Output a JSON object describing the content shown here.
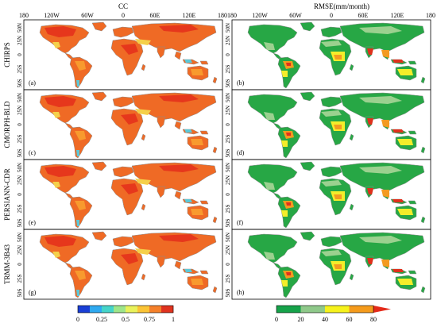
{
  "columns": [
    {
      "title": "CC",
      "top_lon": [
        "180",
        "120W",
        "60W",
        "0",
        "60E",
        "120E",
        "180"
      ]
    },
    {
      "title": "RMSE(mm/month)",
      "top_lon": [
        "180",
        "120W",
        "60W",
        "0",
        "60E",
        "120E",
        "180"
      ]
    }
  ],
  "lat_labels": [
    "50N",
    "25N",
    "0",
    "25S",
    "50S"
  ],
  "rows": [
    {
      "product": "CHIRPS",
      "panels": [
        "(a)",
        "(b)"
      ]
    },
    {
      "product": "CMORPH-BLD",
      "panels": [
        "(c)",
        "(d)"
      ]
    },
    {
      "product": "PERSIANN-CDR",
      "panels": [
        "(e)",
        "(f)"
      ]
    },
    {
      "product": "TRMM-3B43",
      "panels": [
        "(g)",
        "(h)"
      ]
    }
  ],
  "colorbars": {
    "cc": {
      "ticks": [
        "0",
        "0.25",
        "0.5",
        "0.75",
        "1"
      ],
      "colors": [
        "#1a3fd6",
        "#2fa9f0",
        "#45d4c9",
        "#9ee58a",
        "#e9f25b",
        "#fbc436",
        "#f5802a",
        "#e0331f"
      ]
    },
    "rmse": {
      "ticks": [
        "0",
        "20",
        "40",
        "60",
        "80"
      ],
      "colors": [
        "#16a34a",
        "#8fc98a",
        "#f6f21c",
        "#f59b1c",
        "#e42a1a"
      ]
    }
  },
  "colors": {
    "land_base_cc": "#ef6a25",
    "land_hot_cc": "#e6371c",
    "land_mid_cc": "#f89a2e",
    "land_low_cc": "#f5d04a",
    "land_cool_cc": "#5bc8d8",
    "land_base_rmse": "#27a745",
    "land_light_rmse": "#9bd18f",
    "land_yellow_rmse": "#f4ed2a",
    "land_orange_rmse": "#f39a20",
    "land_red_rmse": "#e0301c",
    "outline": "#8a8a8a",
    "frame": "#000000"
  }
}
